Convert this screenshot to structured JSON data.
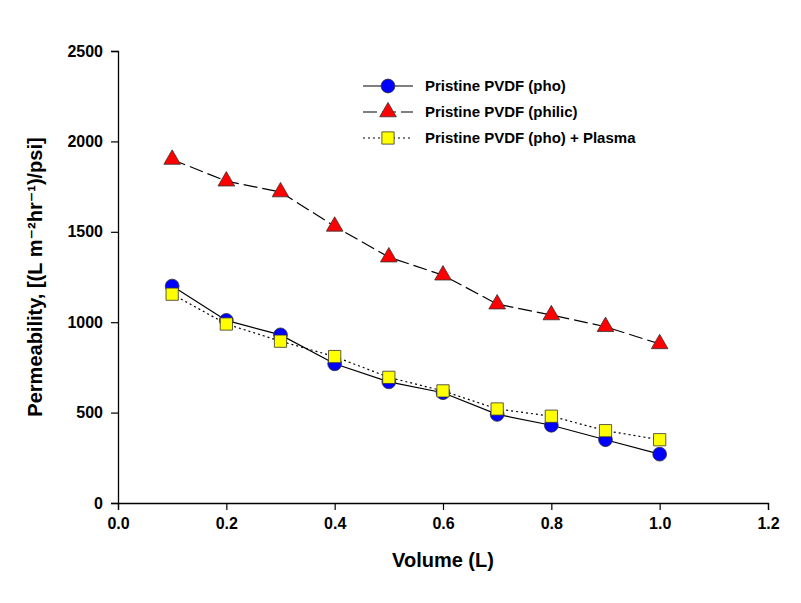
{
  "chart_data": {
    "type": "line",
    "x_label": "Volume (L)",
    "y_label": "Permeability, [(L m⁻²hr⁻¹)/psi]",
    "x": [
      0.1,
      0.2,
      0.3,
      0.4,
      0.5,
      0.6,
      0.7,
      0.8,
      0.9,
      1.0
    ],
    "series": [
      {
        "name": "Pristine PVDF (pho)",
        "color": "#0000ff",
        "marker": "circle",
        "line_style": "solid",
        "values": [
          1200,
          1010,
          930,
          770,
          670,
          610,
          490,
          430,
          350,
          270
        ]
      },
      {
        "name": "Pristine PVDF (philic)",
        "color": "#ff0000",
        "marker": "triangle",
        "line_style": "dashed",
        "values": [
          1900,
          1780,
          1720,
          1530,
          1360,
          1260,
          1100,
          1040,
          975,
          880
        ]
      },
      {
        "name": "Pristine PVDF (pho) + Plasma",
        "color": "#ffff00",
        "marker": "square",
        "line_style": "dotted",
        "values": [
          1155,
          990,
          895,
          810,
          695,
          620,
          520,
          480,
          400,
          350
        ]
      }
    ],
    "xlim": [
      0,
      1.2
    ],
    "xticks": [
      {
        "value": 0,
        "label": "0.0"
      },
      0.2,
      0.4,
      0.6,
      0.8,
      {
        "value": 1,
        "label": "1.0"
      },
      1.2
    ],
    "ylim": [
      0,
      2500
    ],
    "yticks": [
      0,
      500,
      1000,
      1500,
      2000,
      2500
    ],
    "grid": false,
    "legend": "upper right"
  }
}
